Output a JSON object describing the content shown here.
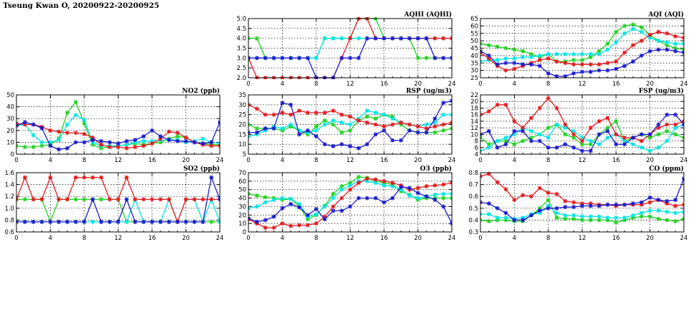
{
  "page": {
    "title": "Tseung Kwan O, 20200922-20200925"
  },
  "colors": {
    "red": "#e41a1c",
    "green": "#1fd21f",
    "cyan": "#00e5e5",
    "blue": "#1a1acc"
  },
  "chart_data": [
    {
      "id": "aqhi",
      "type": "line",
      "title": "AQHI (AQHI)",
      "xlim": [
        0,
        24
      ],
      "xticks": [
        0,
        4,
        8,
        12,
        16,
        20,
        24
      ],
      "ylim": [
        2.0,
        5.0
      ],
      "yticks": [
        "2.0",
        "2.5",
        "3.0",
        "3.5",
        "4.0",
        "4.5",
        "5.0"
      ],
      "grid": true,
      "series": [
        {
          "color": "green",
          "values": [
            4,
            4,
            3,
            3,
            3,
            3,
            3,
            3,
            3,
            4,
            4,
            4,
            4,
            5,
            5,
            5,
            4,
            4,
            4,
            4,
            3,
            3,
            3,
            3,
            3
          ]
        },
        {
          "color": "cyan",
          "values": [
            3,
            3,
            3,
            3,
            3,
            3,
            3,
            3,
            3,
            4,
            4,
            4,
            4,
            4,
            4,
            4,
            4,
            4,
            4,
            4,
            4,
            4,
            4,
            4,
            4
          ]
        },
        {
          "color": "red",
          "values": [
            3,
            2,
            2,
            2,
            2,
            2,
            2,
            2,
            2,
            2,
            2,
            3,
            4,
            5,
            5,
            4,
            4,
            4,
            4,
            4,
            4,
            4,
            4,
            4,
            4
          ]
        },
        {
          "color": "blue",
          "values": [
            3,
            3,
            3,
            3,
            3,
            3,
            3,
            3,
            2,
            2,
            2,
            3,
            3,
            3,
            4,
            4,
            4,
            4,
            4,
            4,
            4,
            4,
            3,
            3,
            3
          ]
        }
      ]
    },
    {
      "id": "aqi",
      "type": "line",
      "title": "AQI (AQI)",
      "xlim": [
        0,
        24
      ],
      "xticks": [
        0,
        4,
        8,
        12,
        16,
        20,
        24
      ],
      "ylim": [
        25,
        65
      ],
      "yticks": [
        "25",
        "30",
        "35",
        "40",
        "45",
        "50",
        "55",
        "60",
        "65"
      ],
      "grid": true,
      "series": [
        {
          "color": "green",
          "values": [
            48,
            47,
            46,
            45,
            44,
            43,
            41,
            39,
            41,
            36,
            36,
            37,
            37,
            39,
            43,
            48,
            56,
            60,
            61,
            59,
            54,
            50,
            47,
            45,
            44
          ]
        },
        {
          "color": "cyan",
          "values": [
            36,
            37,
            37,
            38,
            38,
            39,
            39,
            40,
            41,
            41,
            41,
            41,
            41,
            41,
            41,
            44,
            49,
            55,
            58,
            56,
            52,
            50,
            49,
            48,
            48
          ]
        },
        {
          "color": "red",
          "values": [
            42,
            38,
            33,
            30,
            31,
            33,
            35,
            37,
            38,
            36,
            35,
            34,
            34,
            34,
            34,
            35,
            36,
            42,
            47,
            50,
            54,
            56,
            55,
            53,
            52
          ]
        },
        {
          "color": "blue",
          "values": [
            43,
            40,
            34,
            35,
            35,
            34,
            34,
            33,
            28,
            26,
            26,
            28,
            29,
            29,
            30,
            30,
            31,
            33,
            36,
            40,
            43,
            44,
            44,
            43,
            42
          ]
        }
      ]
    },
    {
      "id": "no2",
      "type": "line",
      "title": "NO2 (ppb)",
      "xlim": [
        0,
        24
      ],
      "xticks": [
        0,
        4,
        8,
        12,
        16,
        20,
        24
      ],
      "ylim": [
        0,
        50
      ],
      "yticks": [
        "0",
        "10",
        "20",
        "30",
        "40",
        "50"
      ],
      "grid": true,
      "series": [
        {
          "color": "green",
          "values": [
            7,
            6,
            6,
            7,
            8,
            13,
            35,
            44,
            26,
            8,
            5,
            6,
            7,
            8,
            9,
            8,
            9,
            10,
            13,
            15,
            14,
            10,
            9,
            8,
            8
          ]
        },
        {
          "color": "cyan",
          "values": [
            24,
            25,
            16,
            10,
            10,
            12,
            25,
            33,
            29,
            10,
            7,
            7,
            7,
            8,
            10,
            11,
            11,
            12,
            12,
            12,
            10,
            11,
            13,
            10,
            9
          ]
        },
        {
          "color": "red",
          "values": [
            26,
            25,
            25,
            23,
            20,
            19,
            18,
            18,
            17,
            14,
            8,
            6,
            6,
            5,
            6,
            7,
            9,
            13,
            19,
            18,
            14,
            10,
            8,
            7,
            7
          ]
        },
        {
          "color": "blue",
          "values": [
            24,
            27,
            25,
            22,
            7,
            4,
            5,
            10,
            10,
            12,
            11,
            10,
            9,
            11,
            12,
            15,
            20,
            15,
            12,
            11,
            11,
            10,
            9,
            10,
            27
          ]
        }
      ]
    },
    {
      "id": "rsp",
      "type": "line",
      "title": "RSP (ug/m3)",
      "xlim": [
        0,
        24
      ],
      "xticks": [
        0,
        4,
        8,
        12,
        16,
        20,
        24
      ],
      "ylim": [
        5,
        35
      ],
      "yticks": [
        "5",
        "10",
        "15",
        "20",
        "25",
        "30",
        "35"
      ],
      "grid": true,
      "series": [
        {
          "color": "green",
          "values": [
            20,
            18,
            18,
            18,
            17,
            19,
            17,
            15,
            19,
            22,
            20,
            16,
            17,
            22,
            24,
            23,
            25,
            24,
            20,
            17,
            16,
            16,
            16,
            17,
            18
          ]
        },
        {
          "color": "cyan",
          "values": [
            14,
            15,
            17,
            19,
            18,
            20,
            17,
            16,
            17,
            20,
            22,
            21,
            20,
            23,
            27,
            26,
            25,
            23,
            21,
            20,
            19,
            20,
            21,
            25,
            25
          ]
        },
        {
          "color": "red",
          "values": [
            30,
            28,
            25,
            25,
            26,
            25,
            27,
            26,
            26,
            26,
            27,
            25,
            24,
            22,
            21,
            20,
            19,
            20,
            21,
            20,
            19,
            18,
            19,
            20,
            21
          ]
        },
        {
          "color": "blue",
          "values": [
            16,
            16,
            18,
            18,
            31,
            30,
            15,
            17,
            14,
            10,
            9,
            10,
            9,
            8,
            10,
            15,
            17,
            12,
            12,
            17,
            16,
            16,
            23,
            31,
            32
          ]
        }
      ]
    },
    {
      "id": "fsp",
      "type": "line",
      "title": "FSP (ug/m3)",
      "xlim": [
        0,
        24
      ],
      "xticks": [
        0,
        4,
        8,
        12,
        16,
        20,
        24
      ],
      "ylim": [
        4,
        22
      ],
      "yticks": [
        "4",
        "6",
        "8",
        "10",
        "12",
        "14",
        "16",
        "18",
        "20",
        "22"
      ],
      "grid": true,
      "series": [
        {
          "color": "green",
          "values": [
            9,
            7,
            8,
            8,
            7,
            8,
            9,
            10,
            12,
            13,
            10,
            9,
            7,
            7,
            10,
            12,
            14,
            8,
            9,
            10,
            9,
            10,
            11,
            10,
            9
          ]
        },
        {
          "color": "cyan",
          "values": [
            5,
            6,
            8,
            9,
            10,
            12,
            11,
            10,
            9,
            13,
            12,
            11,
            9,
            8,
            7,
            9,
            10,
            8,
            7,
            6,
            5,
            6,
            8,
            12,
            13
          ]
        },
        {
          "color": "red",
          "values": [
            16,
            17,
            19,
            19,
            14,
            12,
            15,
            18,
            21,
            18,
            13,
            10,
            8,
            12,
            14,
            15,
            10,
            9,
            9,
            8,
            10,
            12,
            13,
            13,
            14
          ]
        },
        {
          "color": "blue",
          "values": [
            10,
            11,
            6,
            7,
            11,
            11,
            8,
            8,
            6,
            6,
            7,
            6,
            5,
            5,
            10,
            11,
            7,
            7,
            9,
            10,
            10,
            13,
            16,
            16,
            13
          ]
        }
      ]
    },
    {
      "id": "so2",
      "type": "line",
      "title": "SO2 (ppb)",
      "xlim": [
        0,
        24
      ],
      "xticks": [
        0,
        4,
        8,
        12,
        16,
        20,
        24
      ],
      "ylim": [
        0.6,
        1.6
      ],
      "yticks": [
        "0.6",
        "0.8",
        "1.0",
        "1.2",
        "1.4",
        "1.6"
      ],
      "grid": true,
      "series": [
        {
          "color": "green",
          "values": [
            1.15,
            1.15,
            1.15,
            1.15,
            0.77,
            1.15,
            1.15,
            1.15,
            1.15,
            1.15,
            1.15,
            1.15,
            1.15,
            0.77,
            0.77,
            0.77,
            0.77,
            0.77,
            0.77,
            0.77,
            0.77,
            0.77,
            0.77,
            0.77,
            0.77
          ]
        },
        {
          "color": "cyan",
          "values": [
            0.77,
            0.77,
            0.77,
            0.77,
            0.77,
            0.77,
            0.77,
            0.77,
            0.77,
            0.77,
            0.77,
            0.77,
            0.77,
            0.77,
            1.15,
            0.77,
            0.77,
            0.77,
            1.15,
            0.77,
            1.15,
            1.15,
            0.77,
            1.15,
            0.77
          ]
        },
        {
          "color": "red",
          "values": [
            1.15,
            1.52,
            1.15,
            1.15,
            1.52,
            1.15,
            1.15,
            1.52,
            1.52,
            1.52,
            1.52,
            1.15,
            1.15,
            1.52,
            1.15,
            1.15,
            1.15,
            1.15,
            1.15,
            0.77,
            1.15,
            1.15,
            1.15,
            1.15,
            1.15
          ]
        },
        {
          "color": "blue",
          "values": [
            0.77,
            0.77,
            0.77,
            0.77,
            0.77,
            0.77,
            0.77,
            0.77,
            0.77,
            1.15,
            0.77,
            0.77,
            0.77,
            1.15,
            0.77,
            0.77,
            0.77,
            0.77,
            0.77,
            0.77,
            0.77,
            0.77,
            0.77,
            1.52,
            1.15
          ]
        }
      ]
    },
    {
      "id": "o3",
      "type": "line",
      "title": "O3 (ppb)",
      "xlim": [
        0,
        24
      ],
      "xticks": [
        0,
        4,
        8,
        12,
        16,
        20,
        24
      ],
      "ylim": [
        0,
        70
      ],
      "yticks": [
        "0",
        "10",
        "20",
        "30",
        "40",
        "50",
        "60",
        "70"
      ],
      "grid": true,
      "series": [
        {
          "color": "green",
          "values": [
            45,
            43,
            41,
            40,
            38,
            39,
            30,
            15,
            20,
            31,
            45,
            54,
            58,
            65,
            64,
            60,
            58,
            56,
            48,
            44,
            38,
            40,
            40,
            40,
            40
          ]
        },
        {
          "color": "cyan",
          "values": [
            28,
            30,
            35,
            38,
            40,
            39,
            33,
            18,
            21,
            30,
            40,
            50,
            55,
            60,
            60,
            58,
            55,
            54,
            50,
            43,
            40,
            42,
            44,
            45,
            45
          ]
        },
        {
          "color": "red",
          "values": [
            15,
            10,
            5,
            5,
            10,
            7,
            8,
            8,
            10,
            18,
            30,
            40,
            50,
            58,
            63,
            62,
            60,
            58,
            55,
            50,
            52,
            54,
            55,
            56,
            58
          ]
        },
        {
          "color": "blue",
          "values": [
            16,
            12,
            14,
            18,
            28,
            33,
            29,
            20,
            27,
            15,
            25,
            25,
            30,
            40,
            40,
            40,
            35,
            40,
            53,
            52,
            46,
            42,
            38,
            30,
            10
          ]
        }
      ]
    },
    {
      "id": "co",
      "type": "line",
      "title": "CO (ppm)",
      "xlim": [
        0,
        24
      ],
      "xticks": [
        0,
        4,
        8,
        12,
        16,
        20,
        24
      ],
      "ylim": [
        0.3,
        0.8
      ],
      "yticks": [
        "0.3",
        "0.4",
        "0.5",
        "0.6",
        "0.7",
        "0.8"
      ],
      "grid": true,
      "series": [
        {
          "color": "green",
          "values": [
            0.4,
            0.39,
            0.4,
            0.4,
            0.39,
            0.39,
            0.44,
            0.5,
            0.57,
            0.42,
            0.41,
            0.41,
            0.4,
            0.4,
            0.4,
            0.4,
            0.38,
            0.4,
            0.42,
            0.43,
            0.43,
            0.41,
            0.4,
            0.39,
            0.41
          ]
        },
        {
          "color": "cyan",
          "values": [
            0.45,
            0.45,
            0.42,
            0.42,
            0.41,
            0.42,
            0.45,
            0.46,
            0.52,
            0.46,
            0.44,
            0.44,
            0.43,
            0.43,
            0.43,
            0.42,
            0.42,
            0.42,
            0.44,
            0.46,
            0.48,
            0.48,
            0.47,
            0.46,
            0.47
          ]
        },
        {
          "color": "red",
          "values": [
            0.77,
            0.79,
            0.72,
            0.66,
            0.57,
            0.61,
            0.6,
            0.67,
            0.63,
            0.62,
            0.56,
            0.55,
            0.54,
            0.54,
            0.53,
            0.53,
            0.52,
            0.53,
            0.53,
            0.53,
            0.55,
            0.57,
            0.54,
            0.52,
            0.53
          ]
        },
        {
          "color": "blue",
          "values": [
            0.55,
            0.54,
            0.5,
            0.46,
            0.4,
            0.4,
            0.44,
            0.48,
            0.5,
            0.5,
            0.51,
            0.51,
            0.52,
            0.52,
            0.52,
            0.53,
            0.53,
            0.53,
            0.54,
            0.55,
            0.59,
            0.57,
            0.56,
            0.57,
            0.75
          ]
        }
      ]
    }
  ]
}
